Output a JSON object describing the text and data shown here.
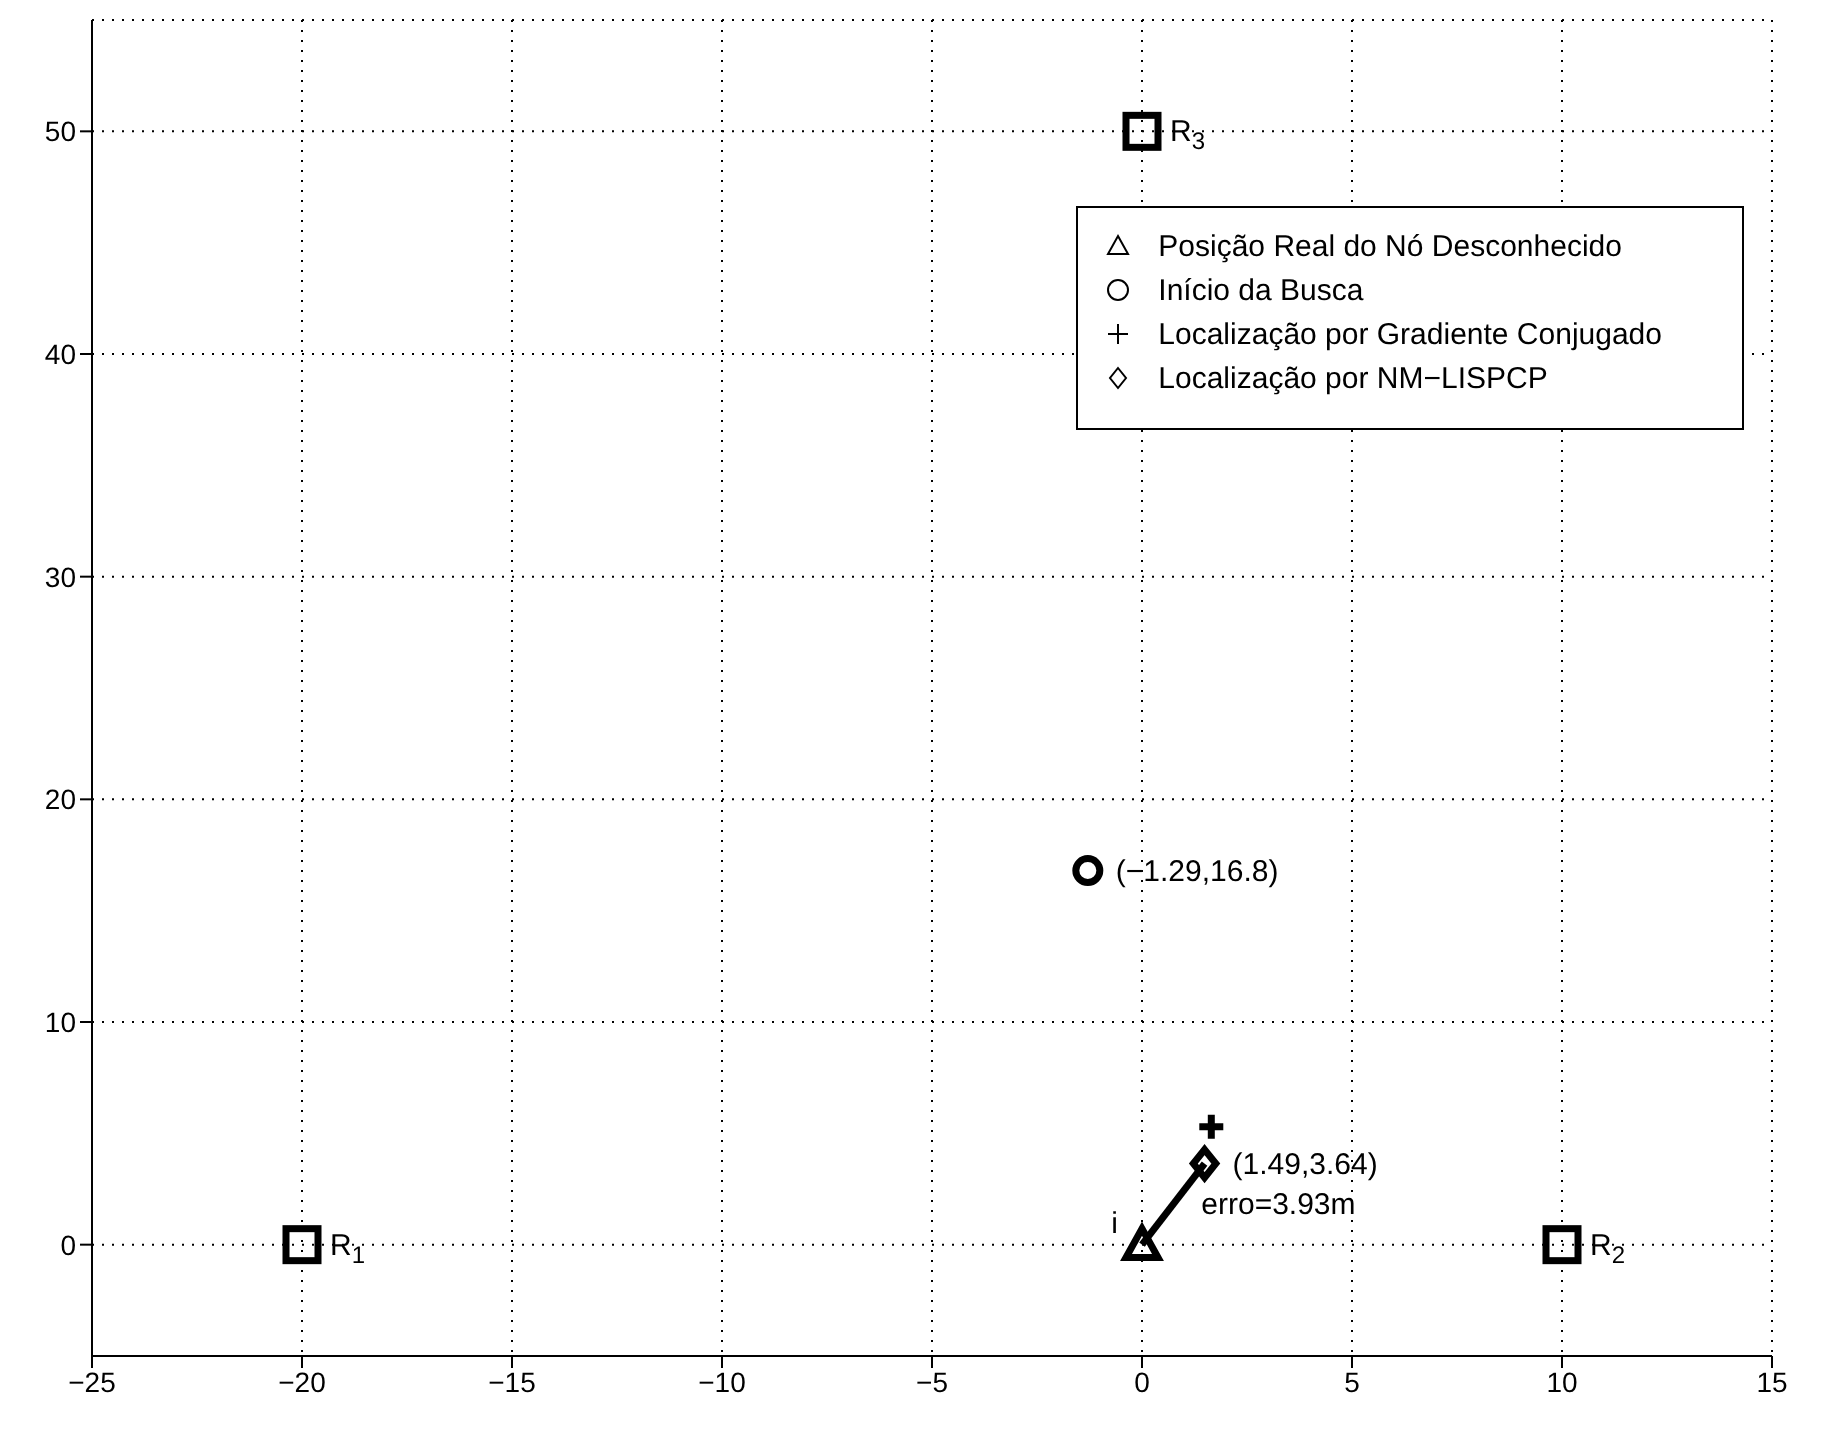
{
  "chart_data": {
    "type": "scatter",
    "xlim": [
      -25,
      15
    ],
    "ylim": [
      -5,
      55
    ],
    "xticks": [
      -25,
      -20,
      -15,
      -10,
      -5,
      0,
      5,
      10,
      15
    ],
    "yticks": [
      0,
      10,
      20,
      30,
      40,
      50
    ],
    "grid": true,
    "legend": "top right",
    "series": [
      {
        "type": "line",
        "color": "#000000",
        "x": [
          0,
          1.49
        ],
        "values": [
          0,
          3.64
        ],
        "marker": "none",
        "line_style": "solid"
      },
      {
        "name": "Posição Real do Nó Desconhecido",
        "color": "#000000",
        "x": [
          0
        ],
        "values": [
          0
        ],
        "marker": "triangle"
      },
      {
        "name": "Início da Busca",
        "color": "#000000",
        "x": [
          -1.29
        ],
        "values": [
          16.8
        ],
        "marker": "circle"
      },
      {
        "name": "Localização por Gradiente Conjugado",
        "color": "#000000",
        "x": [
          1.65
        ],
        "values": [
          5.3
        ],
        "marker": "cross"
      },
      {
        "name": "Localização por NM−LISPCP",
        "color": "#000000",
        "x": [
          1.49
        ],
        "values": [
          3.64
        ],
        "marker": "diamond"
      },
      {
        "color": "#000000",
        "x": [
          -20,
          10,
          0
        ],
        "values": [
          0,
          0,
          50
        ],
        "marker": "square"
      }
    ],
    "annotations": [
      {
        "text": "R$_{1}$",
        "x": -20,
        "y": 0
      },
      {
        "text": "R$_{2}$",
        "x": 10,
        "y": 0
      },
      {
        "text": "R$_{3}$",
        "x": 0,
        "y": 50
      },
      {
        "text": "i",
        "x": 0,
        "y": 0
      },
      {
        "text": "(−1.29,16.8)",
        "x": -1.29,
        "y": 16.8
      },
      {
        "text": "(1.49,3.64)",
        "x": 1.49,
        "y": 3.64
      },
      {
        "text": "erro=3.93m",
        "x": 0.745,
        "y": 1.82
      }
    ]
  }
}
